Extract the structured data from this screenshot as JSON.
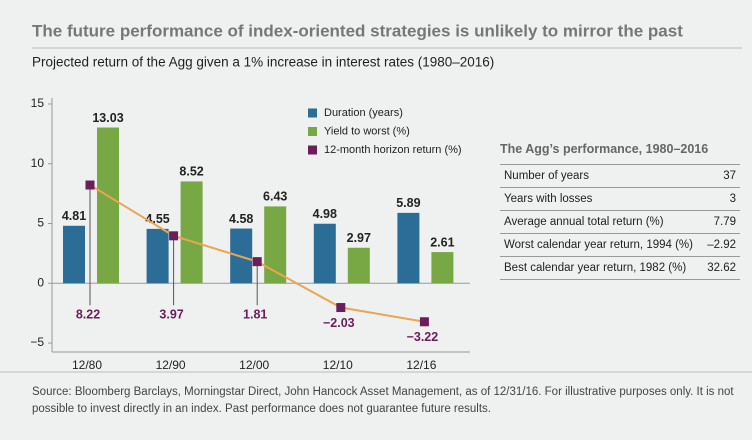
{
  "chart_data": {
    "type": "bar",
    "title": "The future performance of index-oriented strategies is unlikely to mirror the past",
    "subtitle": "Projected return of the Agg given a 1% increase in interest rates (1980–2016)",
    "categories": [
      "12/80",
      "12/90",
      "12/00",
      "12/10",
      "12/16"
    ],
    "series": [
      {
        "name": "Duration (years)",
        "type": "bar",
        "color": "#2b6d97",
        "values": [
          4.81,
          4.55,
          4.58,
          4.98,
          5.89
        ]
      },
      {
        "name": "Yield to worst (%)",
        "type": "bar",
        "color": "#78a843",
        "values": [
          13.03,
          8.52,
          6.43,
          2.97,
          2.61
        ]
      },
      {
        "name": "12-month horizon return (%)",
        "type": "line",
        "color": "#6a1e5c",
        "line_color": "#eba552",
        "values": [
          8.22,
          3.97,
          1.81,
          -2.03,
          -3.22
        ],
        "value_labels": [
          "8.22",
          "3.97",
          "1.81",
          "−2.03",
          "−3.22"
        ]
      }
    ],
    "ylim": [
      -5.75,
      15.5
    ],
    "yticks": [
      {
        "value": -5,
        "label": "−5"
      },
      0,
      5,
      10,
      15
    ]
  },
  "table": {
    "title": "The Agg’s performance, 1980–2016",
    "rows": [
      [
        "Number of years",
        "37"
      ],
      [
        "Years with losses",
        "3"
      ],
      [
        "Average annual total return (%)",
        "7.79"
      ],
      [
        "Worst calendar year return, 1994 (%)",
        "–2.92"
      ],
      [
        "Best calendar year return, 1982 (%)",
        "32.62"
      ]
    ]
  },
  "source": "Source: Bloomberg Barclays, Morningstar Direct, John Hancock Asset Management, as of 12/31/16. For illustrative purposes only. It is not possible to invest directly in an index. Past performance does not guarantee future results."
}
